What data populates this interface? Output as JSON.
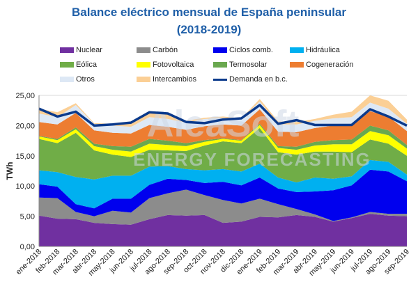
{
  "title_line1": "Balance eléctrico mensual de España peninsular",
  "title_line2": "(2018-2019)",
  "watermark": {
    "line1": "AleaSoft",
    "line2": "ENERGY FORECASTING"
  },
  "chart_data": {
    "type": "area",
    "stacked": true,
    "ylabel": "TWh",
    "ylim": [
      0,
      25
    ],
    "yticks": [
      "0,00",
      "5,00",
      "10,00",
      "15,00",
      "20,00",
      "25,00"
    ],
    "grid": true,
    "legend_placement": "top",
    "categories": [
      "ene-2018",
      "feb-2018",
      "mar-2018",
      "abr-2018",
      "may-2018",
      "jun-2018",
      "jul-2018",
      "ago-2018",
      "sep-2018",
      "oct-2018",
      "nov-2018",
      "dic-2018",
      "ene-2019",
      "feb-2019",
      "mar-2019",
      "abr-2019",
      "may-2019",
      "jun-2019",
      "jul-2019",
      "ago-2019",
      "sep-2019"
    ],
    "series": [
      {
        "name": "Nuclear",
        "color": "#7030a0",
        "values": [
          5.1,
          4.6,
          4.5,
          3.9,
          3.7,
          3.6,
          4.5,
          5.2,
          5.1,
          5.2,
          3.9,
          4.1,
          4.9,
          4.8,
          5.2,
          4.9,
          4.1,
          4.7,
          5.4,
          5.1,
          5.0
        ]
      },
      {
        "name": "Carbón",
        "color": "#8c8c8c",
        "values": [
          3.0,
          3.4,
          1.2,
          1.1,
          2.2,
          2.0,
          3.5,
          3.6,
          4.3,
          3.3,
          3.8,
          3.0,
          3.0,
          2.2,
          1.0,
          0.4,
          0.1,
          0.1,
          0.3,
          0.3,
          0.4
        ]
      },
      {
        "name": "Ciclos comb.",
        "color": "#0000ee",
        "values": [
          2.2,
          1.9,
          1.3,
          1.3,
          2.0,
          2.3,
          2.2,
          2.4,
          1.6,
          2.0,
          3.0,
          3.0,
          3.5,
          2.6,
          2.8,
          3.8,
          5.1,
          5.3,
          7.0,
          7.0,
          5.4
        ]
      },
      {
        "name": "Hidráulica",
        "color": "#00b0f0",
        "values": [
          2.3,
          2.4,
          4.5,
          4.8,
          3.8,
          3.8,
          3.0,
          2.1,
          1.8,
          2.1,
          2.1,
          2.3,
          2.3,
          1.8,
          1.6,
          2.3,
          1.9,
          1.5,
          1.6,
          1.6,
          1.1
        ]
      },
      {
        "name": "Eólica",
        "color": "#70ad47",
        "values": [
          5.2,
          4.8,
          7.3,
          4.8,
          3.5,
          3.1,
          2.8,
          2.6,
          3.0,
          4.1,
          4.6,
          4.7,
          5.9,
          4.2,
          4.6,
          4.3,
          4.5,
          4.0,
          3.4,
          3.0,
          3.1
        ]
      },
      {
        "name": "Fotovoltaica",
        "color": "#ffff00",
        "values": [
          0.4,
          0.5,
          0.6,
          0.7,
          0.8,
          0.9,
          1.0,
          0.9,
          0.8,
          0.6,
          0.4,
          0.4,
          0.5,
          0.7,
          0.8,
          1.0,
          1.2,
          1.3,
          1.4,
          1.4,
          1.2
        ]
      },
      {
        "name": "Termosolar",
        "color": "#6aa84f",
        "values": [
          0.1,
          0.2,
          0.3,
          0.4,
          0.6,
          0.8,
          0.8,
          0.7,
          0.5,
          0.3,
          0.1,
          0.1,
          0.2,
          0.3,
          0.5,
          0.6,
          0.7,
          0.8,
          0.9,
          0.8,
          0.6
        ]
      },
      {
        "name": "Cogeneración",
        "color": "#ed7d31",
        "values": [
          2.3,
          2.4,
          2.4,
          2.2,
          2.2,
          2.2,
          2.3,
          2.3,
          2.2,
          2.3,
          2.3,
          2.4,
          2.4,
          2.4,
          2.4,
          2.3,
          2.4,
          2.4,
          2.4,
          2.3,
          2.3
        ]
      },
      {
        "name": "Otros",
        "color": "#dde8f5",
        "values": [
          1.4,
          1.2,
          1.3,
          1.1,
          1.2,
          1.1,
          1.3,
          1.3,
          1.2,
          1.2,
          1.1,
          1.1,
          1.3,
          1.2,
          1.3,
          1.2,
          1.2,
          1.3,
          1.4,
          1.3,
          1.2
        ]
      },
      {
        "name": "Intercambios",
        "color": "#fbcf95",
        "values": [
          0.8,
          0.8,
          0.3,
          0.1,
          0.3,
          0.8,
          0.7,
          0.8,
          0.3,
          0.2,
          0.2,
          0.1,
          0.4,
          0.5,
          0.4,
          0.3,
          0.6,
          0.9,
          1.2,
          1.3,
          0.7
        ]
      }
    ],
    "line": {
      "name": "Demanda en b.c.",
      "color": "#0b3a8c",
      "values": [
        22.8,
        21.5,
        22.3,
        20.0,
        20.2,
        20.5,
        22.2,
        22.0,
        20.6,
        20.4,
        21.0,
        21.2,
        23.4,
        20.3,
        20.9,
        20.1,
        20.1,
        20.1,
        22.7,
        21.5,
        20.0
      ]
    }
  }
}
